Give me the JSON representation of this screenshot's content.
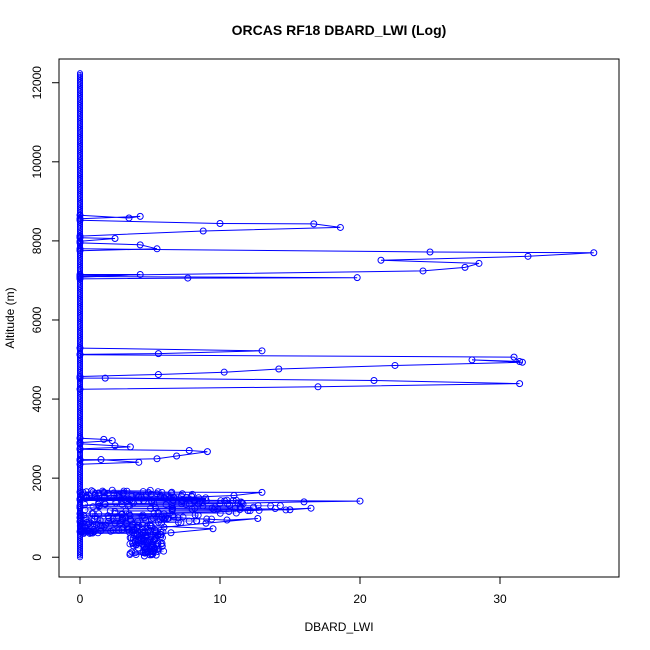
{
  "chart_data": {
    "type": "line",
    "title": "ORCAS RF18 DBARD_LWI (Log)",
    "xlabel": "DBARD_LWI",
    "ylabel": "Altitude (m)",
    "xlim": [
      -1.5,
      38.5
    ],
    "ylim": [
      -500,
      12600
    ],
    "xticks": [
      0,
      10,
      20,
      30
    ],
    "yticks": [
      0,
      2000,
      4000,
      6000,
      8000,
      10000,
      12000
    ],
    "grid": false,
    "series_color": "#0000ff",
    "marker": "open-circle",
    "segments": [
      {
        "name": "",
        "points": [
          [
            0,
            8650
          ],
          [
            3.5,
            8580
          ],
          [
            4.3,
            8620
          ],
          [
            0,
            8560
          ]
        ]
      },
      {
        "name": "",
        "points": [
          [
            0,
            8520
          ],
          [
            10,
            8440
          ],
          [
            16.7,
            8430
          ],
          [
            18.6,
            8340
          ],
          [
            8.8,
            8250
          ],
          [
            0,
            8120
          ]
        ]
      },
      {
        "name": "",
        "points": [
          [
            0,
            8080
          ],
          [
            2.5,
            8060
          ],
          [
            0,
            7990
          ]
        ]
      },
      {
        "name": "",
        "points": [
          [
            0,
            7950
          ],
          [
            4.3,
            7900
          ],
          [
            5.5,
            7800
          ],
          [
            0,
            7750
          ]
        ]
      },
      {
        "name": "",
        "points": [
          [
            0,
            7800
          ],
          [
            25,
            7720
          ],
          [
            36.7,
            7700
          ],
          [
            32,
            7610
          ],
          [
            21.5,
            7510
          ],
          [
            28.5,
            7430
          ],
          [
            27.5,
            7330
          ],
          [
            24.5,
            7240
          ],
          [
            0,
            7120
          ]
        ]
      },
      {
        "name": "",
        "points": [
          [
            0,
            7150
          ],
          [
            4.3,
            7150
          ],
          [
            0,
            7080
          ]
        ]
      },
      {
        "name": "",
        "points": [
          [
            0,
            7100
          ],
          [
            19.8,
            7070
          ],
          [
            7.7,
            7060
          ],
          [
            0,
            7040
          ]
        ]
      },
      {
        "name": "",
        "points": [
          [
            0,
            5290
          ],
          [
            13,
            5220
          ],
          [
            5.6,
            5150
          ],
          [
            0,
            5130
          ]
        ]
      },
      {
        "name": "",
        "points": [
          [
            0,
            5120
          ],
          [
            31,
            5060
          ],
          [
            31.4,
            4950
          ],
          [
            28,
            4990
          ],
          [
            31.6,
            4930
          ],
          [
            22.5,
            4850
          ],
          [
            14.2,
            4760
          ],
          [
            10.3,
            4680
          ],
          [
            5.6,
            4620
          ],
          [
            0,
            4570
          ]
        ]
      },
      {
        "name": "",
        "points": [
          [
            0,
            4530
          ],
          [
            1.8,
            4530
          ],
          [
            21,
            4470
          ],
          [
            31.4,
            4390
          ],
          [
            17,
            4310
          ],
          [
            0,
            4250
          ]
        ]
      },
      {
        "name": "",
        "points": [
          [
            0,
            3010
          ],
          [
            1.7,
            2980
          ],
          [
            2.3,
            2950
          ],
          [
            0,
            2900
          ]
        ]
      },
      {
        "name": "",
        "points": [
          [
            0,
            2870
          ],
          [
            2.5,
            2820
          ],
          [
            3.6,
            2790
          ],
          [
            0,
            2740
          ]
        ]
      },
      {
        "name": "",
        "points": [
          [
            0,
            2730
          ],
          [
            7.8,
            2700
          ],
          [
            9.1,
            2670
          ],
          [
            6.9,
            2560
          ],
          [
            5.5,
            2490
          ],
          [
            0,
            2450
          ]
        ]
      },
      {
        "name": "",
        "points": [
          [
            0,
            2470
          ],
          [
            1.5,
            2470
          ],
          [
            4.2,
            2400
          ],
          [
            0,
            2350
          ]
        ]
      },
      {
        "name": "",
        "points": [
          [
            0,
            1650
          ],
          [
            13,
            1640
          ],
          [
            11,
            1560
          ],
          [
            6,
            1490
          ],
          [
            0,
            1470
          ]
        ]
      },
      {
        "name": "",
        "points": [
          [
            0,
            1450
          ],
          [
            20,
            1420
          ],
          [
            16,
            1400
          ],
          [
            10,
            1360
          ],
          [
            3,
            1340
          ],
          [
            0,
            1300
          ]
        ]
      },
      {
        "name": "",
        "points": [
          [
            0,
            1250
          ],
          [
            8,
            1220
          ],
          [
            15,
            1200
          ],
          [
            16.5,
            1240
          ],
          [
            12,
            1180
          ],
          [
            6,
            1100
          ],
          [
            2,
            1050
          ],
          [
            0,
            1000
          ]
        ]
      },
      {
        "name": "",
        "points": [
          [
            0,
            1100
          ],
          [
            3,
            1080
          ],
          [
            7,
            1000
          ],
          [
            10.5,
            940
          ],
          [
            12.7,
            980
          ],
          [
            9,
            860
          ],
          [
            6,
            760
          ],
          [
            4.5,
            700
          ],
          [
            0,
            650
          ]
        ]
      },
      {
        "name": "",
        "points": [
          [
            0,
            900
          ],
          [
            2.5,
            860
          ],
          [
            5,
            800
          ],
          [
            9.5,
            720
          ],
          [
            6.5,
            620
          ],
          [
            4.8,
            560
          ],
          [
            3.8,
            480
          ],
          [
            4.5,
            400
          ],
          [
            5.2,
            330
          ],
          [
            4.6,
            260
          ],
          [
            5.5,
            200
          ],
          [
            4.8,
            140
          ],
          [
            5.2,
            80
          ],
          [
            4.6,
            30
          ],
          [
            5,
            60
          ],
          [
            4.5,
            120
          ],
          [
            5.3,
            180
          ]
        ]
      }
    ]
  }
}
